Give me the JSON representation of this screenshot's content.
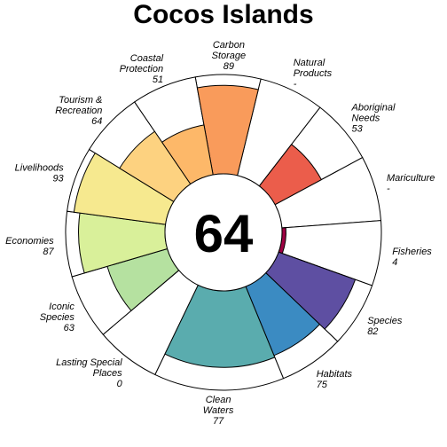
{
  "chart_data": {
    "type": "flower",
    "title": "Cocos Islands",
    "center_score": "64",
    "value_max": 100,
    "petals": [
      {
        "name": "Carbon Storage",
        "value_label": "89",
        "value": 89,
        "weight": 1,
        "color": "#F99B5B"
      },
      {
        "name": "Natural Products",
        "value_label": "-",
        "value": 0,
        "weight": 1,
        "color": "#F7B36C"
      },
      {
        "name": "Aboriginal Needs",
        "value_label": "53",
        "value": 53,
        "weight": 1,
        "color": "#EB5D4B"
      },
      {
        "name": "Mariculture",
        "value_label": "-",
        "value": 0,
        "weight": 1,
        "color": "#D9444D"
      },
      {
        "name": "Fisheries",
        "value_label": "4",
        "value": 4,
        "weight": 1,
        "color": "#9E0142"
      },
      {
        "name": "Species",
        "value_label": "82",
        "value": 82,
        "weight": 1,
        "color": "#5E4FA2"
      },
      {
        "name": "Habitats",
        "value_label": "75",
        "value": 75,
        "weight": 1,
        "color": "#3B8BC2"
      },
      {
        "name": "Clean Waters",
        "value_label": "77",
        "value": 77,
        "weight": 2,
        "color": "#5AACAE"
      },
      {
        "name": "Lasting Special Places",
        "value_label": "0",
        "value": 0,
        "weight": 1,
        "color": "#7FCBA4"
      },
      {
        "name": "Iconic Species",
        "value_label": "63",
        "value": 63,
        "weight": 1,
        "color": "#B5E1A0"
      },
      {
        "name": "Economies",
        "value_label": "87",
        "value": 87,
        "weight": 1,
        "color": "#D9F09A"
      },
      {
        "name": "Livelihoods",
        "value_label": "93",
        "value": 93,
        "weight": 1,
        "color": "#F6E98F"
      },
      {
        "name": "Tourism & Recreation",
        "value_label": "64",
        "value": 64,
        "weight": 1,
        "color": "#FDD280"
      },
      {
        "name": "Coastal Protection",
        "value_label": "51",
        "value": 51,
        "weight": 1,
        "color": "#FDB869"
      }
    ]
  }
}
